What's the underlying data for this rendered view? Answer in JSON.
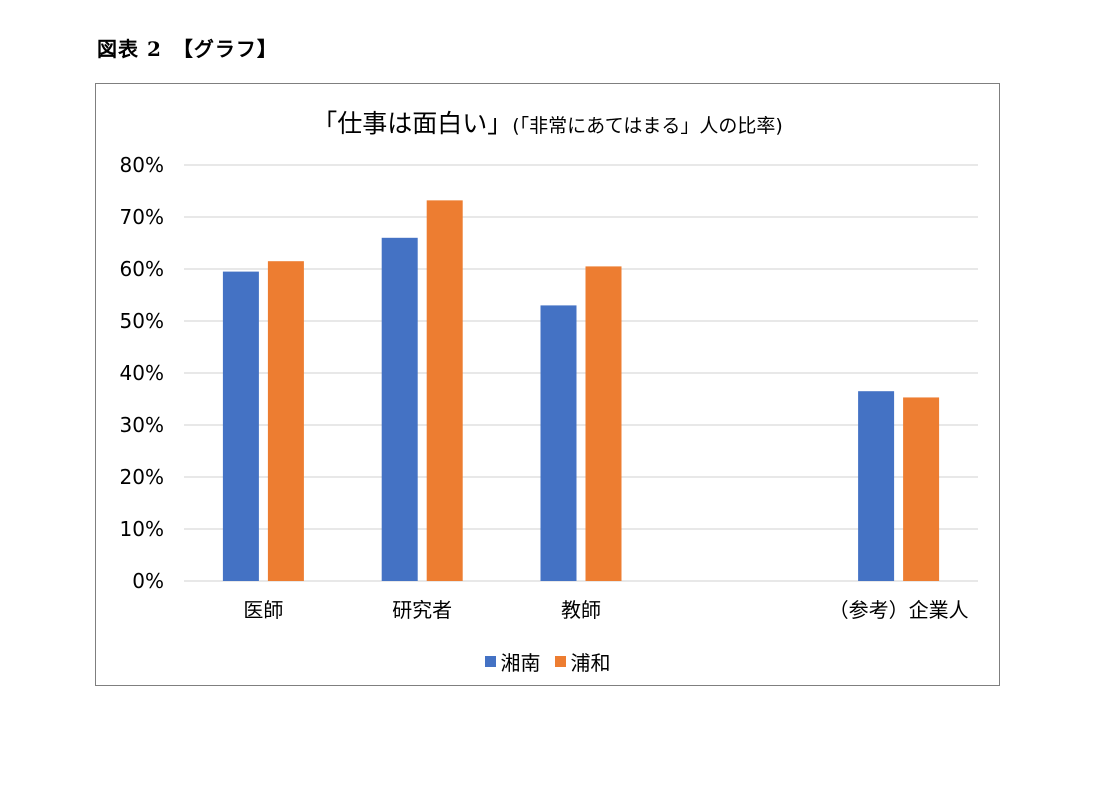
{
  "figure_caption": "図表 2　【グラフ】",
  "chart_data": {
    "type": "bar",
    "title": "「仕事は面白い」",
    "subtitle": "(「非常にあてはまる」人の比率)",
    "categories": [
      "医師",
      "研究者",
      "教師",
      "",
      "（参考）企業人"
    ],
    "series": [
      {
        "name": "湘南",
        "color": "#4472c4",
        "values": [
          0.595,
          0.66,
          0.53,
          null,
          0.365
        ]
      },
      {
        "name": "浦和",
        "color": "#ed7d31",
        "values": [
          0.615,
          0.732,
          0.605,
          null,
          0.353
        ]
      }
    ],
    "ylim": [
      0,
      0.8
    ],
    "yticks": [
      "0%",
      "10%",
      "20%",
      "30%",
      "40%",
      "50%",
      "60%",
      "70%",
      "80%"
    ],
    "grid": true,
    "gridColor": "#d9d9d9",
    "legend": "bottom"
  }
}
